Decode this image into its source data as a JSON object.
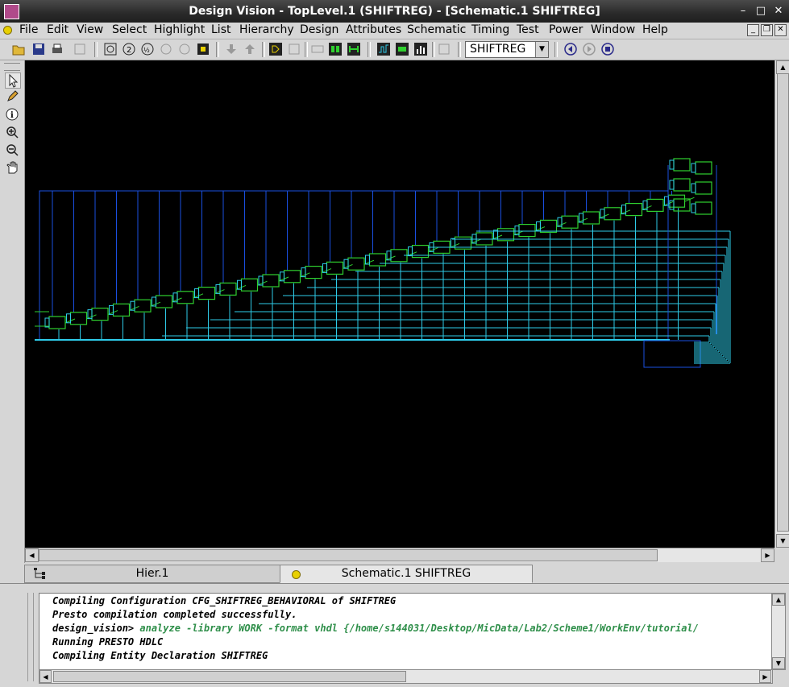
{
  "window": {
    "title": "Design Vision - TopLevel.1 (SHIFTREG) - [Schematic.1   SHIFTREG]",
    "controls": [
      "–",
      "□",
      "✕"
    ]
  },
  "menu": [
    "File",
    "Edit",
    "View",
    "Select",
    "Highlight",
    "List",
    "Hierarchy",
    "Design",
    "Attributes",
    "Schematic",
    "Timing",
    "Test",
    "Power",
    "Window",
    "Help"
  ],
  "toolbar": {
    "design_select": "SHIFTREG"
  },
  "tabs": [
    {
      "label": "Hier.1",
      "active": false
    },
    {
      "label": "Schematic.1   SHIFTREG",
      "active": true
    }
  ],
  "console": {
    "lines": [
      {
        "text": "Compiling Configuration CFG_SHIFTREG_BEHAVIORAL of SHIFTREG"
      },
      {
        "text": "Presto compilation completed successfully."
      },
      {
        "prompt": "design_vision>",
        "command": " analyze -library WORK -format vhdl {/home/s144031/Desktop/MicData/Lab2/Scheme1/WorkEnv/tutorial/"
      },
      {
        "text": "Running PRESTO HDLC"
      },
      {
        "text": "Compiling Entity Declaration SHIFTREG"
      }
    ]
  },
  "colors": {
    "canvas": "#000000",
    "wire": "#1a4fe0",
    "net": "#2ecbe8",
    "cell": "#2fd02f",
    "command_text": "#2f8f4a"
  },
  "icons": {
    "palette": [
      "select-arrow-icon",
      "pencil-icon",
      "info-icon",
      "zoom-in-icon",
      "zoom-out-icon",
      "pan-hand-icon"
    ]
  }
}
